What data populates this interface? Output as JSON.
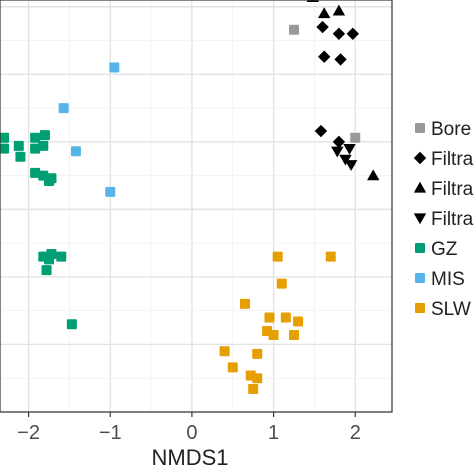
{
  "chart_data": {
    "type": "scatter",
    "xlabel": "NMDS1",
    "ylabel": "",
    "title": "",
    "xlim": [
      -2.35,
      2.45
    ],
    "ylim": [
      -1.25,
      1.8
    ],
    "x_ticks": [
      -2,
      -1,
      0,
      1,
      2
    ],
    "x_tick_labels": [
      "−2",
      "−1",
      "0",
      "1",
      "2"
    ],
    "grid": true,
    "legend_position": "right",
    "series": [
      {
        "name": "Bore",
        "marker": "square",
        "color": "#999999",
        "points": [
          [
            1.25,
            1.58
          ],
          [
            2.0,
            0.78
          ]
        ]
      },
      {
        "name": "Filtra",
        "marker": "diamond",
        "color": "#000000",
        "points": [
          [
            1.6,
            1.6
          ],
          [
            1.8,
            1.55
          ],
          [
            1.97,
            1.55
          ],
          [
            1.62,
            1.38
          ],
          [
            1.82,
            1.36
          ],
          [
            1.58,
            0.83
          ],
          [
            1.8,
            0.75
          ]
        ]
      },
      {
        "name": "Filtra",
        "marker": "triangle-up",
        "color": "#000000",
        "points": [
          [
            1.48,
            1.82
          ],
          [
            1.62,
            1.7
          ],
          [
            1.8,
            1.72
          ],
          [
            2.22,
            0.5
          ]
        ]
      },
      {
        "name": "Filtra",
        "marker": "triangle-down",
        "color": "#000000",
        "points": [
          [
            1.78,
            0.68
          ],
          [
            1.88,
            0.62
          ],
          [
            1.93,
            0.7
          ],
          [
            1.95,
            0.58
          ]
        ]
      },
      {
        "name": "GZ",
        "marker": "square",
        "color": "#009E73",
        "points": [
          [
            -2.3,
            0.78
          ],
          [
            -2.3,
            0.7
          ],
          [
            -2.12,
            0.72
          ],
          [
            -2.1,
            0.64
          ],
          [
            -1.92,
            0.78
          ],
          [
            -1.92,
            0.7
          ],
          [
            -1.82,
            0.72
          ],
          [
            -1.8,
            0.8
          ],
          [
            -1.92,
            0.52
          ],
          [
            -1.82,
            0.5
          ],
          [
            -1.75,
            0.46
          ],
          [
            -1.72,
            0.48
          ],
          [
            -1.82,
            -0.1
          ],
          [
            -1.75,
            -0.12
          ],
          [
            -1.72,
            -0.08
          ],
          [
            -1.6,
            -0.1
          ],
          [
            -1.78,
            -0.2
          ],
          [
            -1.47,
            -0.6
          ]
        ]
      },
      {
        "name": "MIS",
        "marker": "square",
        "color": "#56B4E9",
        "points": [
          [
            -0.95,
            1.3
          ],
          [
            -1.57,
            1.0
          ],
          [
            -1.42,
            0.68
          ],
          [
            -1.0,
            0.38
          ]
        ]
      },
      {
        "name": "SLW",
        "marker": "square",
        "color": "#E69F00",
        "points": [
          [
            1.05,
            -0.1
          ],
          [
            1.7,
            -0.1
          ],
          [
            1.1,
            -0.3
          ],
          [
            0.65,
            -0.45
          ],
          [
            1.15,
            -0.55
          ],
          [
            0.95,
            -0.55
          ],
          [
            1.3,
            -0.58
          ],
          [
            0.92,
            -0.65
          ],
          [
            1.0,
            -0.68
          ],
          [
            1.25,
            -0.68
          ],
          [
            0.4,
            -0.8
          ],
          [
            0.8,
            -0.82
          ],
          [
            0.5,
            -0.92
          ],
          [
            0.72,
            -0.98
          ],
          [
            0.8,
            -1.0
          ],
          [
            0.75,
            -1.08
          ]
        ]
      }
    ]
  }
}
